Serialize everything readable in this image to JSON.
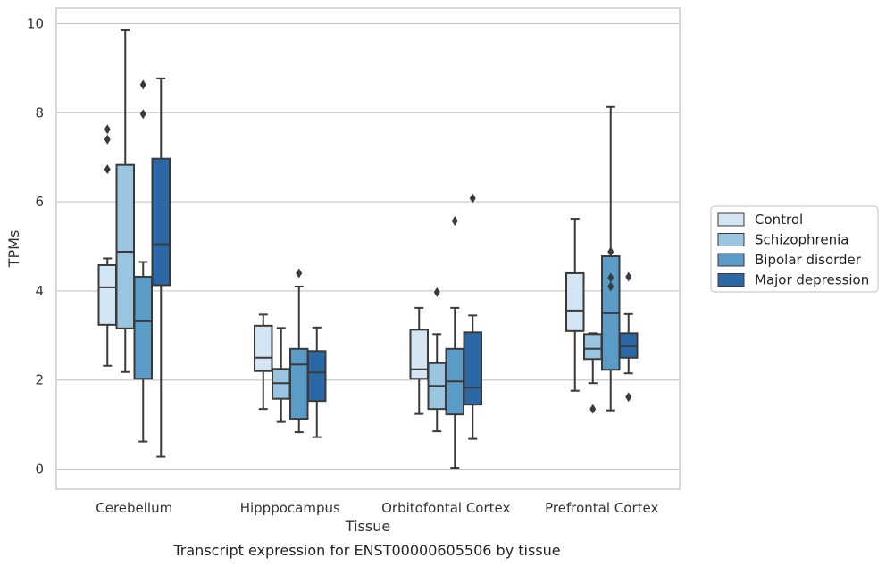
{
  "chart_data": {
    "type": "box",
    "xlabel": "Tissue",
    "ylabel": "TPMs",
    "caption": "Transcript expression for ENST00000605506 by tissue",
    "ylim": [
      -0.45,
      10.35
    ],
    "yticks": [
      0,
      2,
      4,
      6,
      8,
      10
    ],
    "grid": "horizontal",
    "legend_position": "right",
    "categories": [
      "Cerebellum",
      "Hipppocampus",
      "Orbitofontal Cortex",
      "Prefrontal Cortex"
    ],
    "series": [
      {
        "name": "Control",
        "color": "#d3e4f3",
        "boxes": [
          {
            "whislo": 2.32,
            "q1": 3.24,
            "med": 4.08,
            "q3": 4.58,
            "whishi": 4.73,
            "fliers": [
              6.73,
              7.4,
              7.63
            ]
          },
          {
            "whislo": 1.35,
            "q1": 2.2,
            "med": 2.5,
            "q3": 3.22,
            "whishi": 3.47,
            "fliers": []
          },
          {
            "whislo": 1.24,
            "q1": 2.03,
            "med": 2.24,
            "q3": 3.13,
            "whishi": 3.62,
            "fliers": []
          },
          {
            "whislo": 1.76,
            "q1": 3.1,
            "med": 3.56,
            "q3": 4.4,
            "whishi": 5.62,
            "fliers": []
          }
        ]
      },
      {
        "name": "Schizophrenia",
        "color": "#9ac5e0",
        "boxes": [
          {
            "whislo": 2.18,
            "q1": 3.16,
            "med": 4.88,
            "q3": 6.83,
            "whishi": 9.85,
            "fliers": []
          },
          {
            "whislo": 1.06,
            "q1": 1.58,
            "med": 1.93,
            "q3": 2.25,
            "whishi": 3.17,
            "fliers": []
          },
          {
            "whislo": 0.85,
            "q1": 1.35,
            "med": 1.87,
            "q3": 2.38,
            "whishi": 3.03,
            "fliers": [
              3.97
            ]
          },
          {
            "whislo": 1.93,
            "q1": 2.47,
            "med": 2.7,
            "q3": 3.03,
            "whishi": 3.05,
            "fliers": [
              1.35
            ]
          }
        ]
      },
      {
        "name": "Bipolar disorder",
        "color": "#5a9bc8",
        "boxes": [
          {
            "whislo": 0.62,
            "q1": 2.03,
            "med": 3.32,
            "q3": 4.32,
            "whishi": 4.65,
            "fliers": [
              7.97,
              8.63
            ]
          },
          {
            "whislo": 0.83,
            "q1": 1.13,
            "med": 2.35,
            "q3": 2.7,
            "whishi": 4.1,
            "fliers": [
              4.4
            ]
          },
          {
            "whislo": 0.03,
            "q1": 1.23,
            "med": 1.97,
            "q3": 2.7,
            "whishi": 3.62,
            "fliers": [
              5.57
            ]
          },
          {
            "whislo": 1.32,
            "q1": 2.23,
            "med": 3.5,
            "q3": 4.78,
            "whishi": 8.13,
            "fliers": [
              4.1,
              4.3,
              4.88
            ]
          }
        ]
      },
      {
        "name": "Major depression",
        "color": "#2a69a6",
        "boxes": [
          {
            "whislo": 0.28,
            "q1": 4.13,
            "med": 5.05,
            "q3": 6.97,
            "whishi": 8.77,
            "fliers": []
          },
          {
            "whislo": 0.72,
            "q1": 1.53,
            "med": 2.17,
            "q3": 2.65,
            "whishi": 3.18,
            "fliers": []
          },
          {
            "whislo": 0.68,
            "q1": 1.45,
            "med": 1.83,
            "q3": 3.07,
            "whishi": 3.45,
            "fliers": [
              6.08
            ]
          },
          {
            "whislo": 2.15,
            "q1": 2.5,
            "med": 2.76,
            "q3": 3.05,
            "whishi": 3.48,
            "fliers": [
              1.62,
              4.32
            ]
          }
        ]
      }
    ]
  }
}
